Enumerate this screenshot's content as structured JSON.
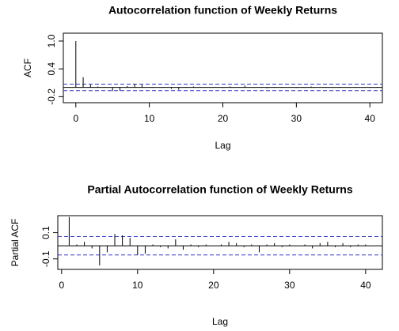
{
  "chart_data": [
    {
      "type": "acf",
      "title": "Autocorrelation function of Weekly Returns",
      "x_label": "Lag",
      "y_label": "ACF",
      "x": [
        0,
        1,
        2,
        3,
        4,
        5,
        6,
        7,
        8,
        9,
        10,
        11,
        12,
        13,
        14,
        15,
        16,
        17,
        18,
        19,
        20,
        21,
        22,
        23,
        24,
        25,
        26,
        27,
        28,
        29,
        30,
        31,
        32,
        33,
        34,
        35,
        36,
        37,
        38,
        39,
        40,
        41
      ],
      "values": [
        1.0,
        0.22,
        0.06,
        0.02,
        0.01,
        -0.08,
        -0.07,
        0.03,
        0.08,
        0.06,
        0.01,
        0.0,
        0.01,
        -0.03,
        -0.05,
        0.01,
        0.02,
        0.01,
        0.0,
        0.01,
        -0.01,
        0.02,
        0.01,
        0.04,
        0.0,
        0.01,
        -0.02,
        0.01,
        0.01,
        0.0,
        -0.01,
        0.01,
        0.02,
        0.0,
        0.01,
        -0.01,
        0.01,
        0.0,
        0.01,
        0.0,
        -0.01,
        0.01
      ],
      "conf_limit": 0.07,
      "color": "#000000",
      "conf_color": "#3333cc",
      "xlim": [
        -1.7,
        41.7
      ],
      "xticks": [
        0,
        10,
        20,
        30,
        40
      ],
      "ylim": [
        -0.33,
        1.17
      ],
      "yticks": [
        -0.2,
        0.4,
        {
          "value": 1.0,
          "label": "1.0"
        }
      ]
    },
    {
      "type": "acf",
      "title": "Partial Autocorrelation function of Weekly Returns",
      "x_label": "Lag",
      "y_label": "Partial ACF",
      "x": [
        1,
        2,
        3,
        4,
        5,
        6,
        7,
        8,
        9,
        10,
        11,
        12,
        13,
        14,
        15,
        16,
        17,
        18,
        19,
        20,
        21,
        22,
        23,
        24,
        25,
        26,
        27,
        28,
        29,
        30,
        31,
        32,
        33,
        34,
        35,
        36,
        37,
        38,
        39,
        40
      ],
      "values": [
        0.22,
        0.01,
        0.03,
        -0.02,
        -0.15,
        -0.05,
        0.09,
        0.08,
        0.06,
        -0.07,
        -0.06,
        0.01,
        -0.01,
        -0.02,
        0.05,
        -0.03,
        0.01,
        -0.01,
        0.01,
        0.0,
        0.01,
        0.03,
        0.02,
        -0.01,
        0.01,
        -0.05,
        0.01,
        0.02,
        -0.01,
        0.01,
        0.0,
        0.01,
        -0.02,
        0.02,
        0.03,
        -0.01,
        0.02,
        -0.01,
        0.01,
        0.01
      ],
      "conf_limit": 0.07,
      "color": "#000000",
      "conf_color": "#3333cc",
      "xlim": [
        -0.5,
        42.2
      ],
      "xticks": [
        0,
        10,
        20,
        30,
        40
      ],
      "ylim": [
        -0.18,
        0.23
      ],
      "yticks": [
        -0.1,
        0.1
      ]
    }
  ]
}
